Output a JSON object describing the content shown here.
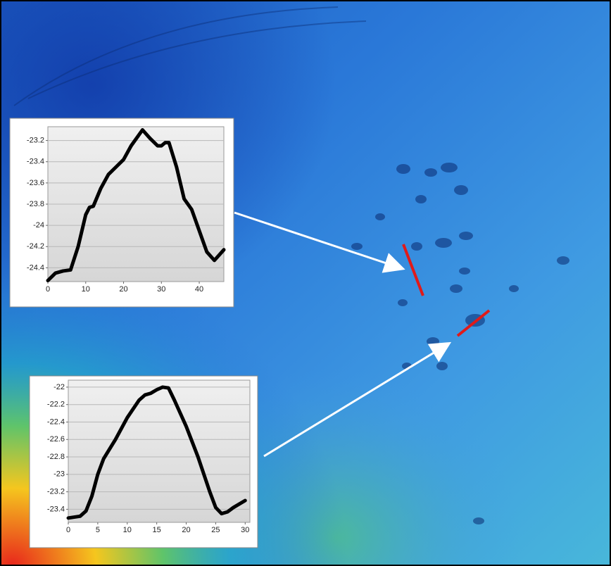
{
  "chart_data": [
    {
      "type": "line",
      "x": [
        0,
        2,
        4,
        6,
        8,
        10,
        11,
        12,
        14,
        16,
        18,
        20,
        22,
        24,
        25,
        27,
        29,
        30,
        31,
        32,
        34,
        36,
        38,
        40,
        42,
        44,
        46.5
      ],
      "values": [
        -24.52,
        -24.45,
        -24.43,
        -24.42,
        -24.2,
        -23.9,
        -23.83,
        -23.82,
        -23.65,
        -23.52,
        -23.45,
        -23.38,
        -23.25,
        -23.15,
        -23.1,
        -23.18,
        -23.25,
        -23.25,
        -23.22,
        -23.22,
        -23.45,
        -23.75,
        -23.85,
        -24.05,
        -24.25,
        -24.33,
        -24.23
      ],
      "color": "#000000",
      "xlim": [
        0,
        46.5
      ],
      "ylim": [
        -24.53,
        -23.07
      ],
      "xticks": [
        0,
        10,
        20,
        30,
        40
      ],
      "yticks": [
        -23.2,
        -23.4,
        -23.6,
        -23.8,
        -24,
        -24.2,
        -24.4
      ],
      "grid": true
    },
    {
      "type": "line",
      "x": [
        0,
        2,
        3,
        4,
        5,
        6,
        8,
        10,
        12,
        13,
        14,
        15,
        16,
        17,
        18,
        20,
        22,
        24,
        25,
        26,
        27,
        28,
        30
      ],
      "values": [
        -23.5,
        -23.48,
        -23.42,
        -23.25,
        -23.0,
        -22.82,
        -22.6,
        -22.35,
        -22.15,
        -22.09,
        -22.07,
        -22.03,
        -22.0,
        -22.01,
        -22.15,
        -22.45,
        -22.8,
        -23.2,
        -23.38,
        -23.45,
        -23.43,
        -23.38,
        -23.3
      ],
      "color": "#000000",
      "xlim": [
        0,
        30.8
      ],
      "ylim": [
        -23.55,
        -21.92
      ],
      "xticks": [
        0,
        5,
        10,
        15,
        20,
        25,
        30
      ],
      "yticks": [
        -22,
        -22.2,
        -22.4,
        -22.6,
        -22.8,
        -23,
        -23.2,
        -23.4
      ],
      "grid": true
    }
  ]
}
